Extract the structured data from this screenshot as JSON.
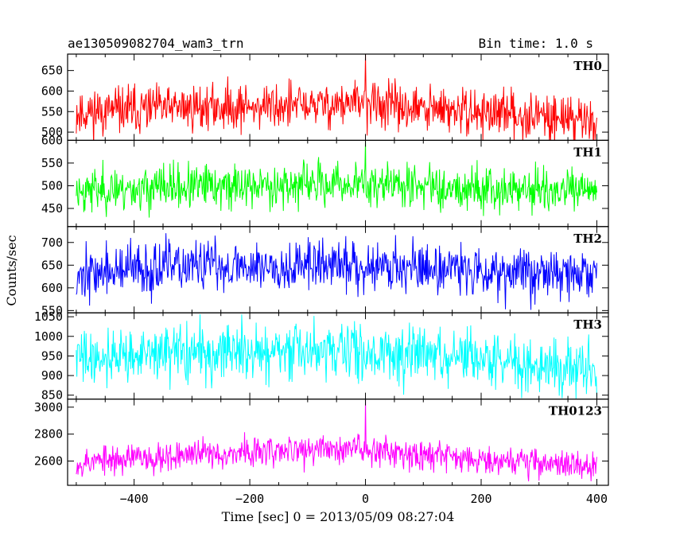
{
  "header": {
    "title": "ae130509082704_wam3_trn",
    "bin_time": "Bin time: 1.0 s"
  },
  "chart_data": {
    "type": "line",
    "title": "ae130509082704_wam3_trn",
    "subtitle": "Bin time: 1.0 s",
    "xlabel": "Time [sec] 0 = 2013/05/09 08:27:04",
    "ylabel": "Counts/sec",
    "xlim": [
      -515,
      420
    ],
    "x_ticks": [
      -400,
      -200,
      0,
      200,
      400
    ],
    "x_tick_labels": [
      "−400",
      "−200",
      "0",
      "200",
      "400"
    ],
    "x_range_data": [
      -500,
      400
    ],
    "bin_seconds": 1.0,
    "grid": false,
    "panels": [
      {
        "label": "TH0",
        "color": "#ff0000",
        "ylim": [
          480,
          690
        ],
        "yticks": [
          500,
          550,
          600,
          650
        ],
        "baseline": [
          [
            -500,
            548
          ],
          [
            -300,
            560
          ],
          [
            -100,
            565
          ],
          [
            0,
            570
          ],
          [
            100,
            555
          ],
          [
            300,
            540
          ],
          [
            400,
            530
          ]
        ],
        "noise": 28,
        "spike": {
          "x": 0,
          "y": 690
        },
        "seed": 11
      },
      {
        "label": "TH1",
        "color": "#00ff00",
        "ylim": [
          410,
          600
        ],
        "yticks": [
          450,
          500,
          550,
          600
        ],
        "baseline": [
          [
            -500,
            490
          ],
          [
            -200,
            500
          ],
          [
            0,
            505
          ],
          [
            200,
            495
          ],
          [
            400,
            485
          ]
        ],
        "noise": 24,
        "spike": {
          "x": 0,
          "y": 600
        },
        "seed": 23
      },
      {
        "label": "TH2",
        "color": "#0000ff",
        "ylim": [
          545,
          735
        ],
        "yticks": [
          550,
          600,
          650,
          700
        ],
        "baseline": [
          [
            -500,
            630
          ],
          [
            -300,
            648
          ],
          [
            -100,
            650
          ],
          [
            0,
            650
          ],
          [
            200,
            640
          ],
          [
            400,
            628
          ]
        ],
        "noise": 28,
        "spike": null,
        "seed": 37
      },
      {
        "label": "TH3",
        "color": "#00ffff",
        "ylim": [
          840,
          1060
        ],
        "yticks": [
          850,
          900,
          950,
          1000,
          1050
        ],
        "baseline": [
          [
            -500,
            945
          ],
          [
            -300,
            958
          ],
          [
            -100,
            960
          ],
          [
            0,
            962
          ],
          [
            200,
            940
          ],
          [
            400,
            915
          ]
        ],
        "noise": 35,
        "spike": null,
        "seed": 41
      },
      {
        "label": "TH0123",
        "color": "#ff00ff",
        "ylim": [
          2420,
          3060
        ],
        "yticks": [
          2600,
          2800,
          3000
        ],
        "baseline": [
          [
            -500,
            2590
          ],
          [
            -300,
            2650
          ],
          [
            -100,
            2680
          ],
          [
            0,
            2700
          ],
          [
            50,
            2670
          ],
          [
            200,
            2620
          ],
          [
            400,
            2560
          ]
        ],
        "noise": 55,
        "spike": {
          "x": 0,
          "y": 3060
        },
        "seed": 53
      }
    ]
  }
}
